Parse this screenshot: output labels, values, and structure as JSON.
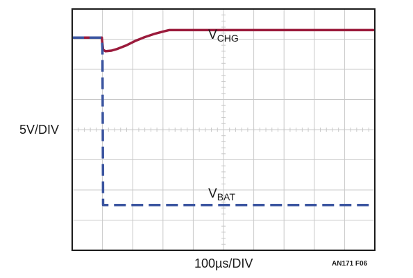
{
  "labels": {
    "y_scale": "5V/DIV",
    "x_scale": "100µs/DIV",
    "figure_id": "AN171 F06"
  },
  "colors": {
    "background": "#ffffff",
    "grid": "#c8c8c8",
    "frame": "#1a1a1a",
    "vchg": "#9b1b3c",
    "vbat": "#3b55a0"
  },
  "chart_data": {
    "type": "line",
    "grid": true,
    "x_divisions": 10,
    "y_divisions": 8,
    "x_unit": "div",
    "y_unit": "div",
    "xlim": [
      0,
      10
    ],
    "ylim": [
      0,
      8
    ],
    "series": [
      {
        "name": "V",
        "subscript": "CHG",
        "style": "solid",
        "color": "#9b1b3c",
        "x": [
          0,
          0.98,
          1.02,
          1.1,
          1.3,
          1.5,
          1.8,
          2.1,
          2.4,
          2.7,
          3.0,
          3.2,
          3.5,
          4.0,
          5.0,
          6.0,
          7.0,
          8.0,
          9.0,
          10.0
        ],
        "y": [
          7.05,
          7.05,
          6.65,
          6.6,
          6.62,
          6.68,
          6.8,
          6.95,
          7.07,
          7.17,
          7.25,
          7.3,
          7.3,
          7.3,
          7.3,
          7.3,
          7.3,
          7.3,
          7.3,
          7.3
        ]
      },
      {
        "name": "V",
        "subscript": "BAT",
        "style": "dashed",
        "color": "#3b55a0",
        "x": [
          0,
          0.98,
          1.0,
          1.02,
          10.0
        ],
        "y": [
          7.05,
          7.05,
          6.7,
          1.5,
          1.5
        ]
      }
    ]
  }
}
